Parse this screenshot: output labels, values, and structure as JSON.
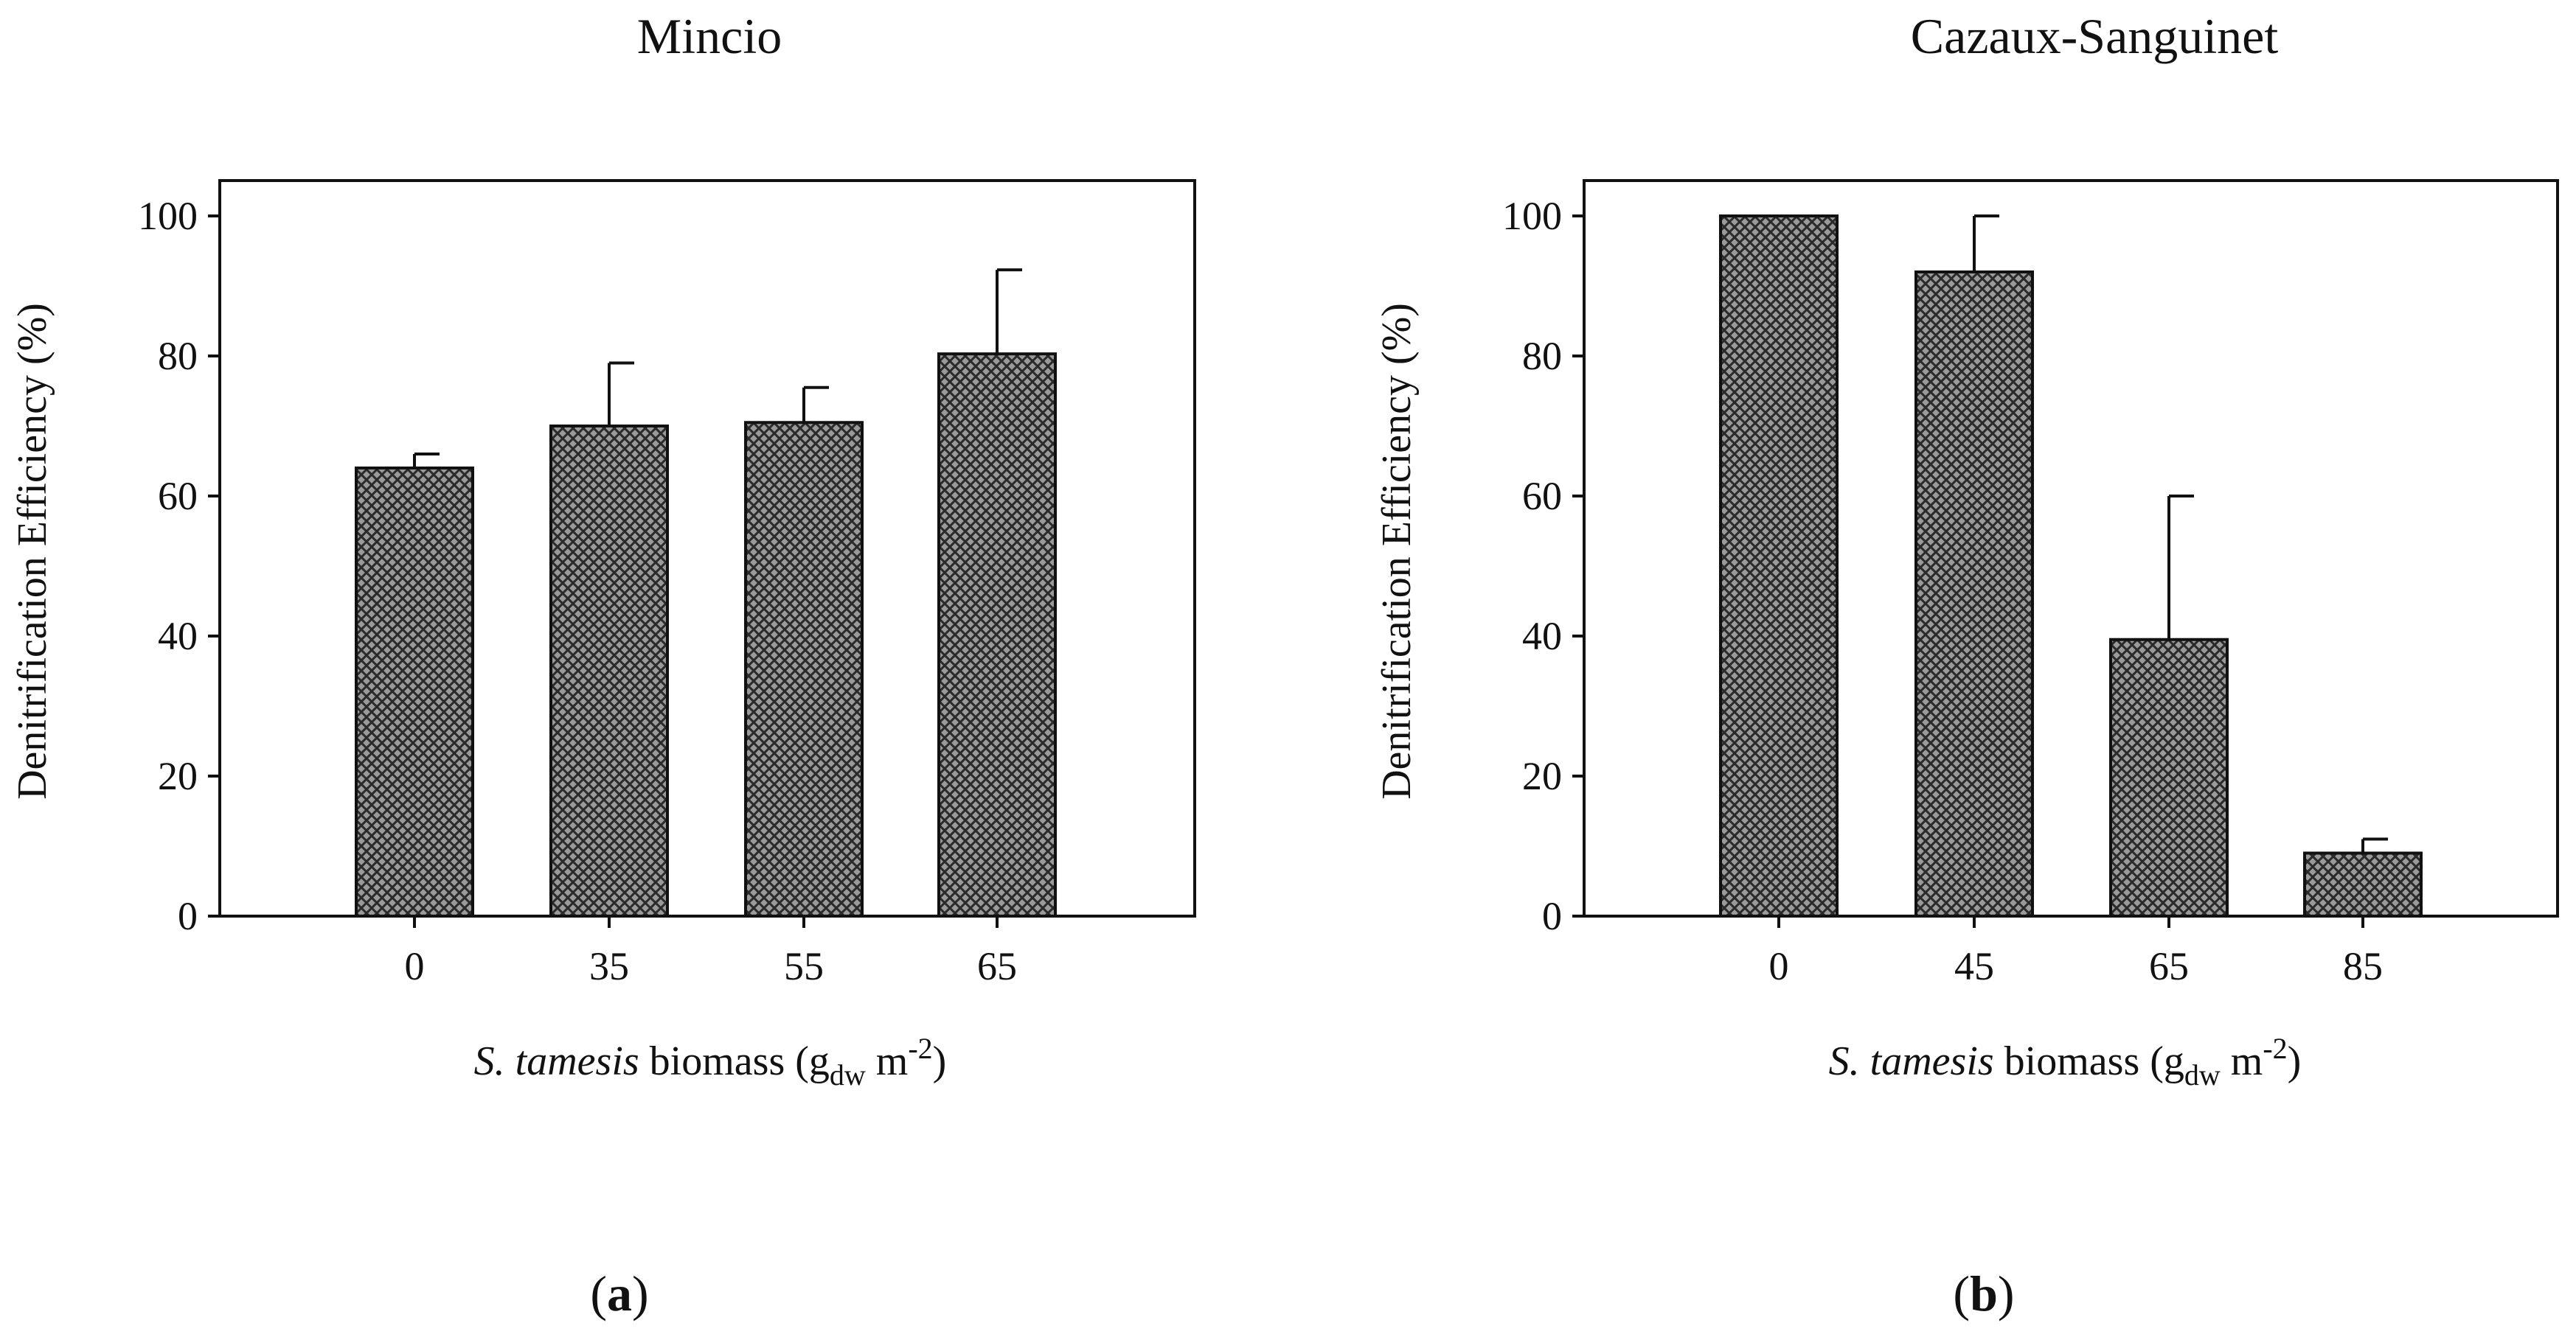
{
  "figure": {
    "panels": [
      {
        "label_open": "(",
        "label_letter": "a",
        "label_close": ")"
      },
      {
        "label_open": "(",
        "label_letter": "b",
        "label_close": ")"
      }
    ]
  },
  "chart_data": [
    {
      "type": "bar",
      "title": "Mincio",
      "categories": [
        "0",
        "35",
        "55",
        "65"
      ],
      "values": [
        64,
        70,
        70.5,
        80.3
      ],
      "errors": [
        2,
        9,
        5,
        12
      ],
      "ylim": [
        0,
        100
      ],
      "yticks": [
        "0",
        "20",
        "40",
        "60",
        "80",
        "100"
      ],
      "ylabel": "Denitrification Efficiency (%)",
      "xlabel": {
        "italic": "S. tamesis",
        "text": " biomass (g",
        "subscript": "dw",
        "unit": " m",
        "superscript": "-2",
        "close": ")"
      },
      "fill": "#8a8a8a"
    },
    {
      "type": "bar",
      "title": "Cazaux-Sanguinet",
      "categories": [
        "0",
        "45",
        "65",
        "85"
      ],
      "values": [
        100,
        92,
        39.5,
        9
      ],
      "errors": [
        0,
        8,
        20.5,
        2
      ],
      "ylim": [
        0,
        100
      ],
      "yticks": [
        "0",
        "20",
        "40",
        "60",
        "80",
        "100"
      ],
      "ylabel": "Denitrification Efficiency (%)",
      "xlabel": {
        "italic": "S. tamesis",
        "text": " biomass (g",
        "subscript": "dw",
        "unit": " m",
        "superscript": "-2",
        "close": ")"
      },
      "fill": "#8a8a8a"
    }
  ]
}
